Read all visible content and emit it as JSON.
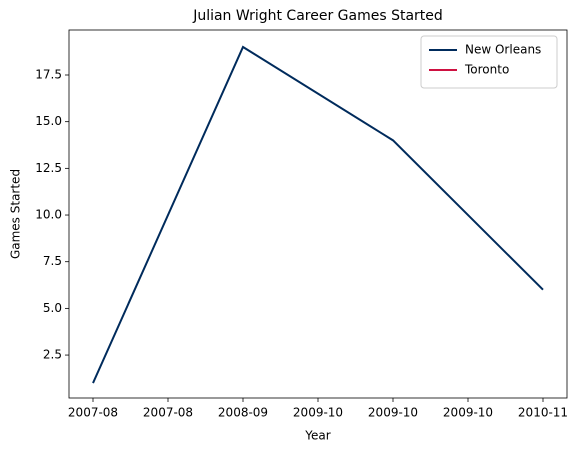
{
  "chart_data": {
    "type": "line",
    "title": "Julian Wright Career Games Started",
    "x_label": "Year",
    "y_label": "Games Started",
    "x": [
      0,
      1,
      2,
      3
    ],
    "series": [
      {
        "name": "New Orleans",
        "color": "#002B5C",
        "values": [
          1,
          19,
          14,
          6
        ]
      },
      {
        "name": "Toronto",
        "color": "#CE1141",
        "values": [
          null,
          null,
          null,
          null
        ]
      }
    ],
    "xlim": [
      -0.16,
      3.16
    ],
    "xticks": [
      {
        "value": 0,
        "label": "2007-08"
      },
      {
        "value": 0.5,
        "label": "2007-08"
      },
      {
        "value": 1,
        "label": "2008-09"
      },
      {
        "value": 1.5,
        "label": "2009-10"
      },
      {
        "value": 2,
        "label": "2009-10"
      },
      {
        "value": 2.5,
        "label": "2009-10"
      },
      {
        "value": 3,
        "label": "2010-11"
      }
    ],
    "ylim": [
      0.2,
      19.91
    ],
    "yticks": [
      2.5,
      {
        "value": 5,
        "label": "5.0"
      },
      7.5,
      {
        "value": 10,
        "label": "10.0"
      },
      12.5,
      {
        "value": 15,
        "label": "15.0"
      },
      17.5
    ],
    "legend": "upper right",
    "grid": false
  }
}
